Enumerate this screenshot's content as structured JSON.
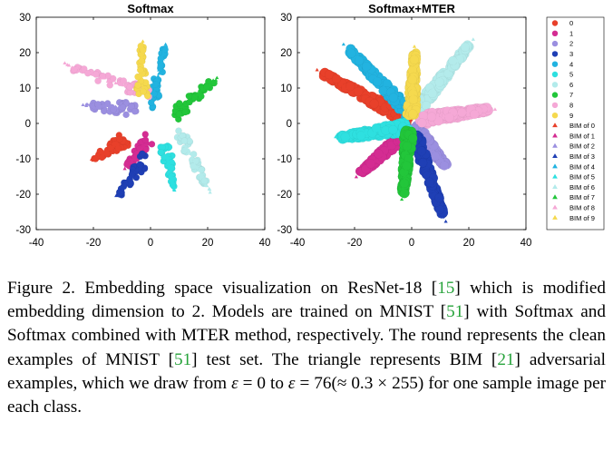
{
  "chart_data": [
    {
      "type": "scatter",
      "title": "Softmax",
      "xlim": [
        -40,
        40
      ],
      "ylim": [
        -30,
        30
      ],
      "xticks": [
        -40,
        -20,
        0,
        20,
        40
      ],
      "yticks": [
        -30,
        -20,
        -10,
        0,
        10,
        20,
        30
      ],
      "grid": false,
      "legend": "outside-right",
      "clusters": [
        {
          "class": "0",
          "color": "#e8402a",
          "start": [
            -8,
            -4
          ],
          "end": [
            -20,
            -10
          ]
        },
        {
          "class": "1",
          "color": "#d42c92",
          "start": [
            0,
            -4
          ],
          "end": [
            -8,
            -12
          ]
        },
        {
          "class": "2",
          "color": "#9b8fe0",
          "start": [
            -5,
            4
          ],
          "end": [
            -22,
            5
          ]
        },
        {
          "class": "3",
          "color": "#1f3fb5",
          "start": [
            -1,
            -9
          ],
          "end": [
            -11,
            -20
          ]
        },
        {
          "class": "4",
          "color": "#22b3e0",
          "start": [
            0,
            4
          ],
          "end": [
            5,
            21
          ]
        },
        {
          "class": "5",
          "color": "#2ee0e0",
          "start": [
            5,
            -6
          ],
          "end": [
            8,
            -18
          ]
        },
        {
          "class": "6",
          "color": "#b3ebeb",
          "start": [
            10,
            -2
          ],
          "end": [
            20,
            -18
          ]
        },
        {
          "class": "7",
          "color": "#22c63a",
          "start": [
            8,
            2
          ],
          "end": [
            22,
            12
          ]
        },
        {
          "class": "8",
          "color": "#f5a8d6",
          "start": [
            0,
            8
          ],
          "end": [
            -28,
            16
          ]
        },
        {
          "class": "9",
          "color": "#f5d94e",
          "start": [
            -3,
            6
          ],
          "end": [
            -3,
            22
          ]
        }
      ]
    },
    {
      "type": "scatter",
      "title": "Softmax+MTER",
      "xlim": [
        -40,
        40
      ],
      "ylim": [
        -30,
        30
      ],
      "xticks": [
        -40,
        -20,
        0,
        20,
        40
      ],
      "yticks": [
        -30,
        -20,
        -10,
        0,
        10,
        20,
        30
      ],
      "grid": false,
      "legend": "right",
      "clusters": [
        {
          "class": "0",
          "color": "#e8402a",
          "start": [
            -1,
            1
          ],
          "end": [
            -31,
            14
          ]
        },
        {
          "class": "1",
          "color": "#d42c92",
          "start": [
            -1,
            -2
          ],
          "end": [
            -18,
            -14
          ]
        },
        {
          "class": "2",
          "color": "#9b8fe0",
          "start": [
            1,
            -1
          ],
          "end": [
            12,
            -12
          ]
        },
        {
          "class": "3",
          "color": "#1f3fb5",
          "start": [
            1,
            -3
          ],
          "end": [
            11,
            -26
          ]
        },
        {
          "class": "4",
          "color": "#22b3e0",
          "start": [
            -1,
            3
          ],
          "end": [
            -22,
            21
          ]
        },
        {
          "class": "5",
          "color": "#2ee0e0",
          "start": [
            -1,
            -1
          ],
          "end": [
            -25,
            -4
          ]
        },
        {
          "class": "6",
          "color": "#b3ebeb",
          "start": [
            1,
            3
          ],
          "end": [
            20,
            22
          ]
        },
        {
          "class": "7",
          "color": "#22c63a",
          "start": [
            -1,
            -2
          ],
          "end": [
            -3,
            -20
          ]
        },
        {
          "class": "8",
          "color": "#f5a8d6",
          "start": [
            2,
            1
          ],
          "end": [
            27,
            4
          ]
        },
        {
          "class": "9",
          "color": "#f5d94e",
          "start": [
            0,
            2
          ],
          "end": [
            1,
            20
          ]
        }
      ]
    }
  ],
  "legend": {
    "entries": [
      {
        "label": "0",
        "marker": "circle",
        "color": "#e8402a"
      },
      {
        "label": "1",
        "marker": "circle",
        "color": "#d42c92"
      },
      {
        "label": "2",
        "marker": "circle",
        "color": "#9b8fe0"
      },
      {
        "label": "3",
        "marker": "circle",
        "color": "#1f3fb5"
      },
      {
        "label": "4",
        "marker": "circle",
        "color": "#22b3e0"
      },
      {
        "label": "5",
        "marker": "circle",
        "color": "#2ee0e0"
      },
      {
        "label": "6",
        "marker": "circle",
        "color": "#b3ebeb"
      },
      {
        "label": "7",
        "marker": "circle",
        "color": "#22c63a"
      },
      {
        "label": "8",
        "marker": "circle",
        "color": "#f5a8d6"
      },
      {
        "label": "9",
        "marker": "circle",
        "color": "#f5d94e"
      },
      {
        "label": "BIM of 0",
        "marker": "triangle",
        "color": "#e8402a"
      },
      {
        "label": "BIM of 1",
        "marker": "triangle",
        "color": "#d42c92"
      },
      {
        "label": "BIM of 2",
        "marker": "triangle",
        "color": "#9b8fe0"
      },
      {
        "label": "BIM of 3",
        "marker": "triangle",
        "color": "#1f3fb5"
      },
      {
        "label": "BIM of 4",
        "marker": "triangle",
        "color": "#22b3e0"
      },
      {
        "label": "BIM of 5",
        "marker": "triangle",
        "color": "#2ee0e0"
      },
      {
        "label": "BIM of 6",
        "marker": "triangle",
        "color": "#b3ebeb"
      },
      {
        "label": "BIM of 7",
        "marker": "triangle",
        "color": "#22c63a"
      },
      {
        "label": "BIM of 8",
        "marker": "triangle",
        "color": "#f5a8d6"
      },
      {
        "label": "BIM of 9",
        "marker": "triangle",
        "color": "#f5d94e"
      }
    ]
  },
  "caption": {
    "t1": "Figure 2. Embedding space visualization on ResNet-18 [",
    "r1": "15",
    "t2": "] which is modified embedding dimension to 2.  Models are trained on MNIST [",
    "r2": "51",
    "t3": "] with Softmax and Softmax combined with MTER method, respectively. The round represents the clean examples of MNIST [",
    "r3": "51",
    "t4": "] test set. The triangle represents BIM [",
    "r4": "21",
    "t5": "] adversarial examples, which we draw from ",
    "m1": "ε",
    "t6": " = 0 to ",
    "m2": "ε",
    "t7": " = 76(≈ 0.3 × 255) for one sample image per each class.",
    "ref_color": "#27a33b"
  }
}
